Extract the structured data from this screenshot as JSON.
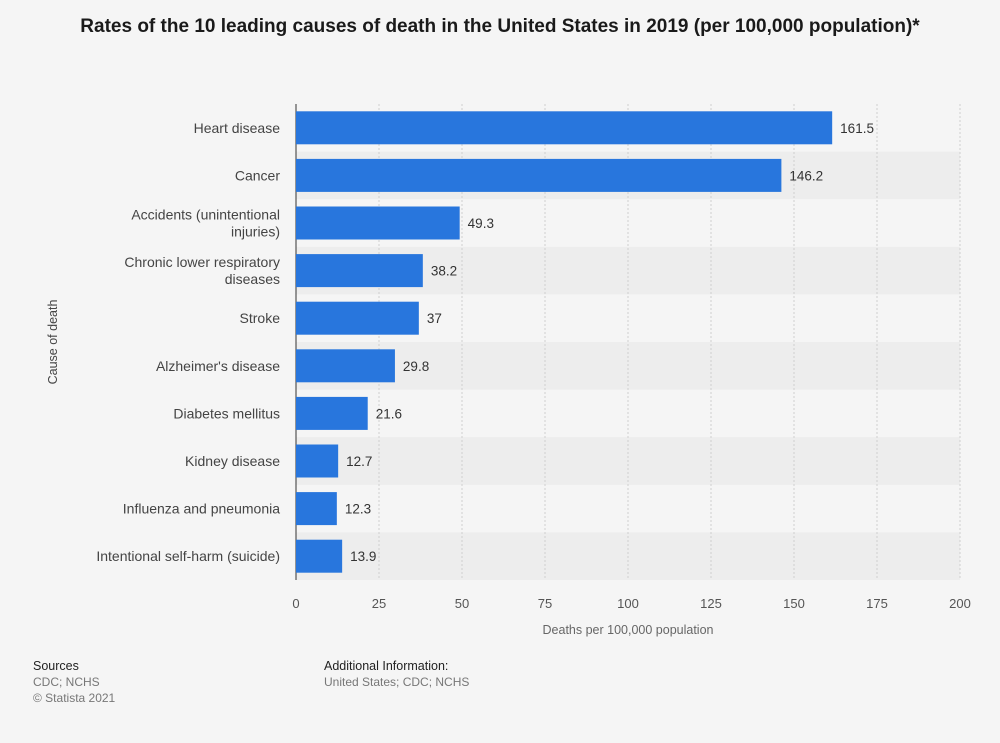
{
  "chart_data": {
    "type": "bar",
    "orientation": "horizontal",
    "title": "Rates of the 10 leading causes of death in the United States in 2019 (per 100,000 population)*",
    "categories": [
      "Heart disease",
      "Cancer",
      "Accidents (unintentional injuries)",
      "Chronic lower respiratory diseases",
      "Stroke",
      "Alzheimer's disease",
      "Diabetes mellitus",
      "Kidney disease",
      "Influenza and pneumonia",
      "Intentional self-harm (suicide)"
    ],
    "values": [
      161.5,
      146.2,
      49.3,
      38.2,
      37,
      29.8,
      21.6,
      12.7,
      12.3,
      13.9
    ],
    "value_labels": [
      "161.5",
      "146.2",
      "49.3",
      "38.2",
      "37",
      "29.8",
      "21.6",
      "12.7",
      "12.3",
      "13.9"
    ],
    "xlabel": "Deaths per 100,000 population",
    "ylabel": "Cause of death",
    "xlim": [
      0,
      200
    ],
    "xticks": [
      0,
      25,
      50,
      75,
      100,
      125,
      150,
      175,
      200
    ],
    "grid": true,
    "bar_color": "#2876dd"
  },
  "footer": {
    "sources_heading": "Sources",
    "sources_line1": "CDC; NCHS",
    "sources_line2": "© Statista 2021",
    "additional_heading": "Additional Information:",
    "additional_line1": "United States; CDC; NCHS"
  }
}
